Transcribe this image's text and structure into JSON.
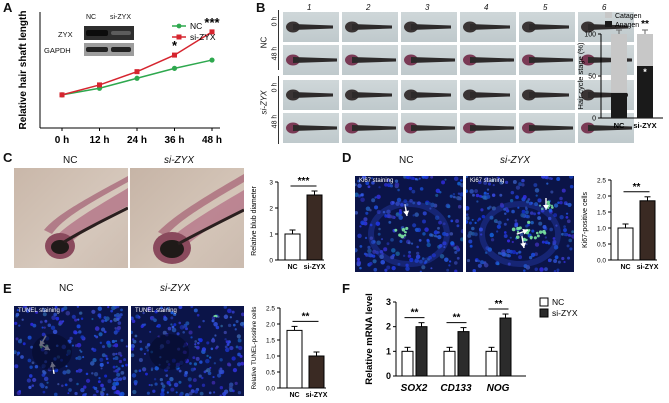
{
  "panels": {
    "A": {
      "letter": "A",
      "chart_data": {
        "type": "line",
        "ylabel": "Relative hair shaft length",
        "categories": [
          "0 h",
          "12 h",
          "24 h",
          "36 h",
          "48 h"
        ],
        "series": [
          {
            "name": "NC",
            "color": "#2ea84e",
            "values": [
              1.0,
              1.2,
              1.5,
              1.8,
              2.05
            ]
          },
          {
            "name": "si-ZYX",
            "color": "#d6252f",
            "values": [
              1.0,
              1.3,
              1.7,
              2.2,
              2.9
            ]
          }
        ],
        "ylim": [
          0,
          3.5
        ],
        "annotations": {
          "h36": "*",
          "h48": "***"
        }
      },
      "blot": {
        "lanes": [
          "NC",
          "si-ZYX"
        ],
        "rows": [
          "ZYX",
          "GAPDH"
        ]
      }
    },
    "B": {
      "letter": "B",
      "columns": [
        "1",
        "2",
        "3",
        "4",
        "5",
        "6"
      ],
      "groups": [
        {
          "name": "NC",
          "times": [
            "0 h",
            "48 h"
          ]
        },
        {
          "name": "si-ZYX",
          "times": [
            "0 h",
            "48 h"
          ]
        }
      ],
      "chart_data": {
        "type": "bar",
        "stacked": true,
        "categories": [
          "NC",
          "si-ZYX"
        ],
        "ylabel": "Hair cycle stage (%)",
        "ylim": [
          0,
          100
        ],
        "yticks": [
          0,
          50,
          100
        ],
        "series": [
          {
            "name": "Anagen",
            "color": "#1a1a1a",
            "values": [
              30,
              62
            ]
          },
          {
            "name": "Catagen",
            "color": "#c7c7c7",
            "values": [
              70,
              38
            ]
          }
        ],
        "annotations": {
          "top": "**",
          "inner": "*"
        }
      }
    },
    "C": {
      "letter": "C",
      "images": [
        {
          "label": "NC"
        },
        {
          "label": "si-ZYX"
        }
      ],
      "chart_data": {
        "type": "bar",
        "categories": [
          "NC",
          "si-ZYX"
        ],
        "values": [
          1.0,
          2.5
        ],
        "ylabel": "Relative blub diameter",
        "ylim": [
          0,
          3
        ],
        "yticks": [
          0,
          1,
          2,
          3
        ],
        "colors": [
          "#ffffff",
          "#3a2a23"
        ],
        "significance": "***"
      }
    },
    "D": {
      "letter": "D",
      "images": [
        {
          "label": "NC",
          "caption": "Ki67 staining"
        },
        {
          "label": "si-ZYX",
          "caption": "Ki67 staining"
        }
      ],
      "chart_data": {
        "type": "bar",
        "categories": [
          "NC",
          "si-ZYX"
        ],
        "values": [
          1.0,
          1.85
        ],
        "ylabel": "Ki67-positive cells",
        "ylim": [
          0,
          2.5
        ],
        "yticks": [
          0.0,
          0.5,
          1.0,
          1.5,
          2.0,
          2.5
        ],
        "colors": [
          "#ffffff",
          "#3a2a23"
        ],
        "significance": "**"
      }
    },
    "E": {
      "letter": "E",
      "images": [
        {
          "label": "NC",
          "caption": "TUNEL staining"
        },
        {
          "label": "si-ZYX",
          "caption": "TUNEL staining"
        }
      ],
      "chart_data": {
        "type": "bar",
        "categories": [
          "NC",
          "si-ZYX"
        ],
        "values": [
          1.8,
          1.0
        ],
        "ylabel": "Relative TUNEL-positive cells",
        "ylim": [
          0,
          2.5
        ],
        "yticks": [
          0.0,
          0.5,
          1.0,
          1.5,
          2.0,
          2.5
        ],
        "colors": [
          "#ffffff",
          "#3a2a23"
        ],
        "significance": "**"
      }
    },
    "F": {
      "letter": "F",
      "chart_data": {
        "type": "bar",
        "categories": [
          "SOX2",
          "CD133",
          "NOG"
        ],
        "ylabel": "Relative mRNA level",
        "ylim": [
          0,
          3
        ],
        "yticks": [
          0,
          1,
          2,
          3
        ],
        "series": [
          {
            "name": "NC",
            "color": "#ffffff",
            "values": [
              1.0,
              1.0,
              1.0
            ]
          },
          {
            "name": "si-ZYX",
            "color": "#2b2b2b",
            "values": [
              2.0,
              1.8,
              2.35
            ]
          }
        ],
        "significance": [
          "**",
          "**",
          "**"
        ]
      }
    }
  }
}
